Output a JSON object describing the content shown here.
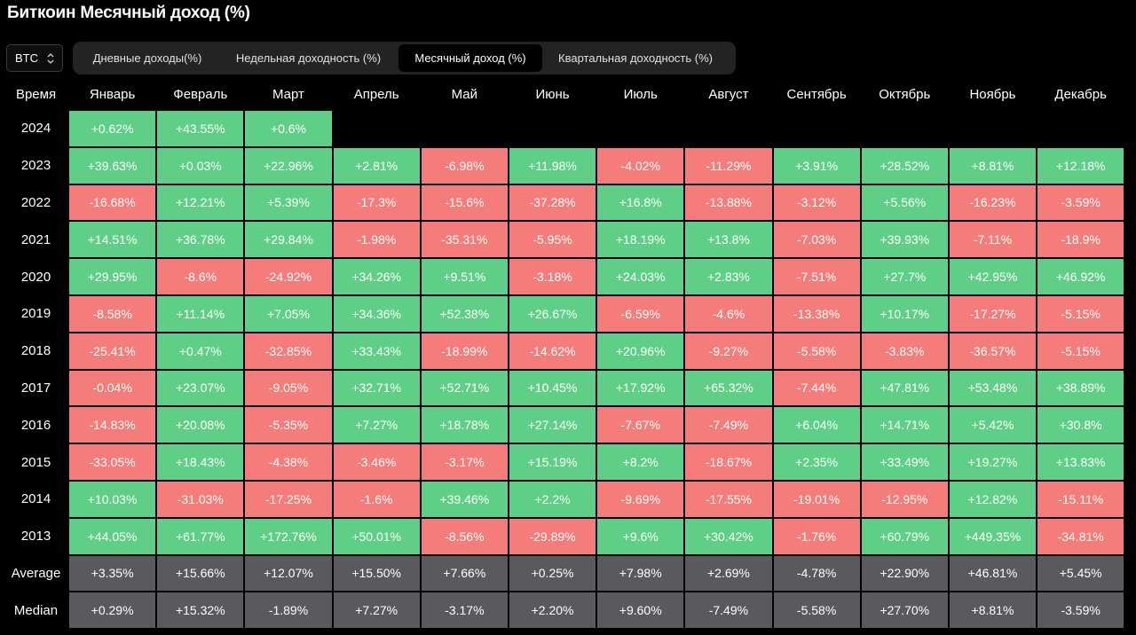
{
  "title": "Биткоин Месячный доход (%)",
  "asset_select": {
    "value": "BTC"
  },
  "tabs": [
    {
      "label": "Дневные доходы(%)",
      "active": false
    },
    {
      "label": "Недельная доходность (%)",
      "active": false
    },
    {
      "label": "Месячный доход (%)",
      "active": true
    },
    {
      "label": "Квартальная доходность (%)",
      "active": false
    }
  ],
  "colors": {
    "positive": "#5fcf87",
    "negative": "#f47c7a",
    "stat": "#5a5a5e",
    "tab_bar": "#232323"
  },
  "chart_data": {
    "type": "table",
    "title": "Биткоин Месячный доход (%)",
    "row_header": "Время",
    "columns": [
      "Январь",
      "Февраль",
      "Март",
      "Апрель",
      "Май",
      "Июнь",
      "Июль",
      "Август",
      "Сентябрь",
      "Октябрь",
      "Ноябрь",
      "Декабрь"
    ],
    "rows": [
      {
        "label": "2024",
        "kind": "year",
        "values": [
          "+0.62%",
          "+43.55%",
          "+0.6%",
          "",
          "",
          "",
          "",
          "",
          "",
          "",
          "",
          ""
        ]
      },
      {
        "label": "2023",
        "kind": "year",
        "values": [
          "+39.63%",
          "+0.03%",
          "+22.96%",
          "+2.81%",
          "-6.98%",
          "+11.98%",
          "-4.02%",
          "-11.29%",
          "+3.91%",
          "+28.52%",
          "+8.81%",
          "+12.18%"
        ]
      },
      {
        "label": "2022",
        "kind": "year",
        "values": [
          "-16.68%",
          "+12.21%",
          "+5.39%",
          "-17.3%",
          "-15.6%",
          "-37.28%",
          "+16.8%",
          "-13.88%",
          "-3.12%",
          "+5.56%",
          "-16.23%",
          "-3.59%"
        ]
      },
      {
        "label": "2021",
        "kind": "year",
        "values": [
          "+14.51%",
          "+36.78%",
          "+29.84%",
          "-1.98%",
          "-35.31%",
          "-5.95%",
          "+18.19%",
          "+13.8%",
          "-7.03%",
          "+39.93%",
          "-7.11%",
          "-18.9%"
        ]
      },
      {
        "label": "2020",
        "kind": "year",
        "values": [
          "+29.95%",
          "-8.6%",
          "-24.92%",
          "+34.26%",
          "+9.51%",
          "-3.18%",
          "+24.03%",
          "+2.83%",
          "-7.51%",
          "+27.7%",
          "+42.95%",
          "+46.92%"
        ]
      },
      {
        "label": "2019",
        "kind": "year",
        "values": [
          "-8.58%",
          "+11.14%",
          "+7.05%",
          "+34.36%",
          "+52.38%",
          "+26.67%",
          "-6.59%",
          "-4.6%",
          "-13.38%",
          "+10.17%",
          "-17.27%",
          "-5.15%"
        ]
      },
      {
        "label": "2018",
        "kind": "year",
        "values": [
          "-25.41%",
          "+0.47%",
          "-32.85%",
          "+33.43%",
          "-18.99%",
          "-14.62%",
          "+20.96%",
          "-9.27%",
          "-5.58%",
          "-3.83%",
          "-36.57%",
          "-5.15%"
        ]
      },
      {
        "label": "2017",
        "kind": "year",
        "values": [
          "-0.04%",
          "+23.07%",
          "-9.05%",
          "+32.71%",
          "+52.71%",
          "+10.45%",
          "+17.92%",
          "+65.32%",
          "-7.44%",
          "+47.81%",
          "+53.48%",
          "+38.89%"
        ]
      },
      {
        "label": "2016",
        "kind": "year",
        "values": [
          "-14.83%",
          "+20.08%",
          "-5.35%",
          "+7.27%",
          "+18.78%",
          "+27.14%",
          "-7.67%",
          "-7.49%",
          "+6.04%",
          "+14.71%",
          "+5.42%",
          "+30.8%"
        ]
      },
      {
        "label": "2015",
        "kind": "year",
        "values": [
          "-33.05%",
          "+18.43%",
          "-4.38%",
          "-3.46%",
          "-3.17%",
          "+15.19%",
          "+8.2%",
          "-18.67%",
          "+2.35%",
          "+33.49%",
          "+19.27%",
          "+13.83%"
        ]
      },
      {
        "label": "2014",
        "kind": "year",
        "values": [
          "+10.03%",
          "-31.03%",
          "-17.25%",
          "-1.6%",
          "+39.46%",
          "+2.2%",
          "-9.69%",
          "-17.55%",
          "-19.01%",
          "-12.95%",
          "+12.82%",
          "-15.11%"
        ]
      },
      {
        "label": "2013",
        "kind": "year",
        "values": [
          "+44.05%",
          "+61.77%",
          "+172.76%",
          "+50.01%",
          "-8.56%",
          "-29.89%",
          "+9.6%",
          "+30.42%",
          "-1.76%",
          "+60.79%",
          "+449.35%",
          "-34.81%"
        ]
      },
      {
        "label": "Average",
        "kind": "stat",
        "values": [
          "+3.35%",
          "+15.66%",
          "+12.07%",
          "+15.50%",
          "+7.66%",
          "+0.25%",
          "+7.98%",
          "+2.69%",
          "-4.78%",
          "+22.90%",
          "+46.81%",
          "+5.45%"
        ]
      },
      {
        "label": "Median",
        "kind": "stat",
        "values": [
          "+0.29%",
          "+15.32%",
          "-1.89%",
          "+7.27%",
          "-3.17%",
          "+2.20%",
          "+9.60%",
          "-7.49%",
          "-5.58%",
          "+27.70%",
          "+8.81%",
          "-3.59%"
        ]
      }
    ]
  }
}
